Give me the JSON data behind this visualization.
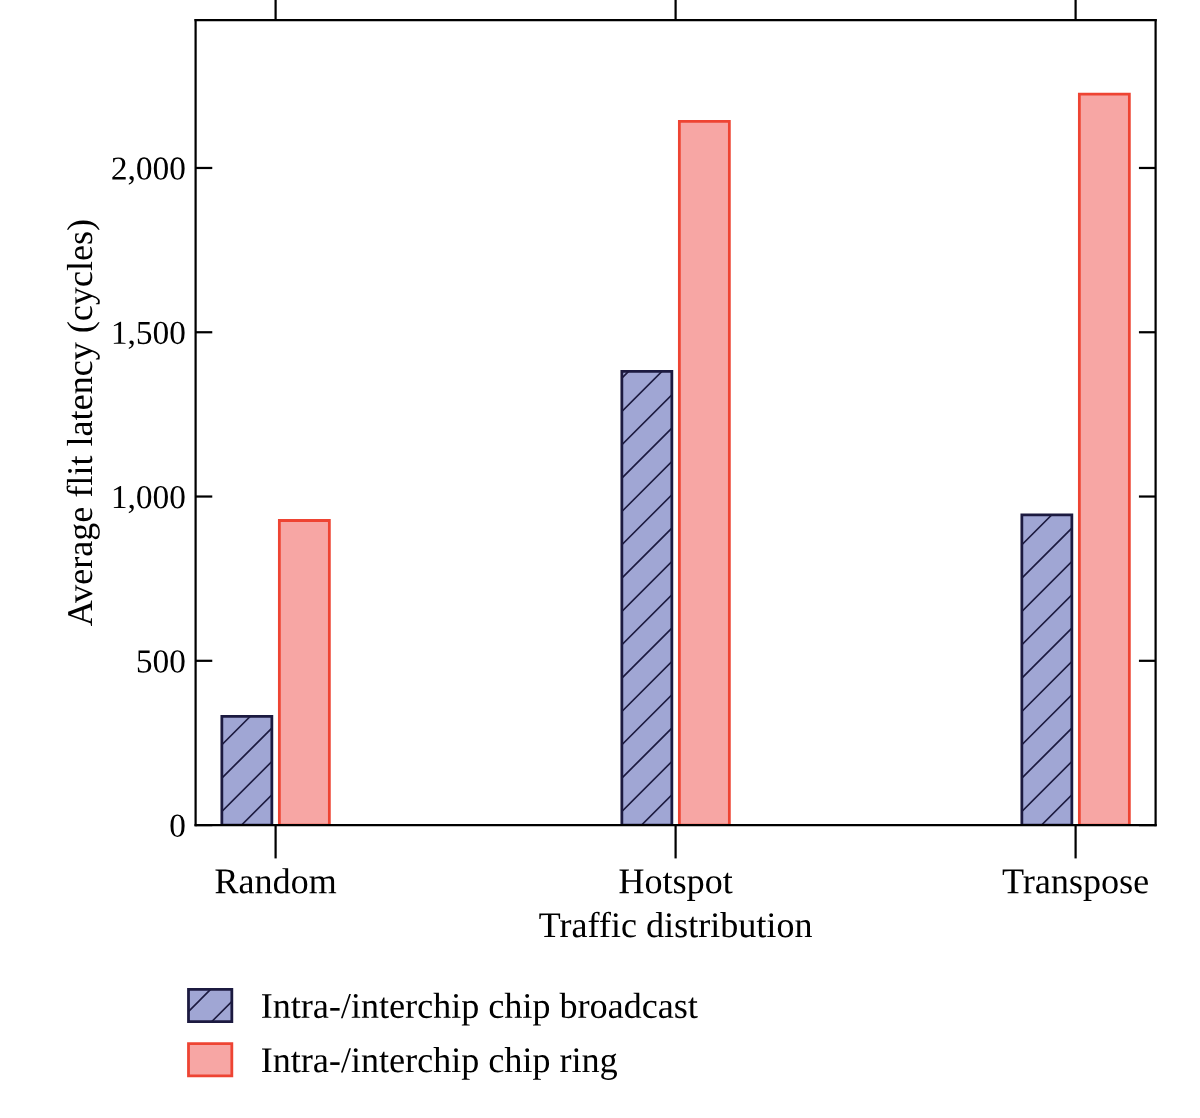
{
  "chart_data": {
    "type": "bar",
    "xlabel": "Traffic distribution",
    "ylabel": "Average flit latency (cycles)",
    "categories": [
      "Random",
      "Hotspot",
      "Transpose"
    ],
    "series": [
      {
        "name": "Intra-/interchip chip broadcast",
        "color": "#a0a6d4",
        "values": [
          331,
          1381,
          944
        ]
      },
      {
        "name": "Intra-/interchip chip ring",
        "color": "#f7a6a4",
        "values": [
          927,
          2142,
          2225
        ]
      }
    ],
    "ylim": [
      0,
      2450
    ],
    "yticks": [
      0,
      {
        "value": 500,
        "label": "500"
      },
      {
        "value": 1000,
        "label": "1,000"
      },
      {
        "value": 1500,
        "label": "1,500"
      },
      {
        "value": 2000,
        "label": "2,000"
      }
    ],
    "grid": false,
    "legend": "bottom left"
  }
}
